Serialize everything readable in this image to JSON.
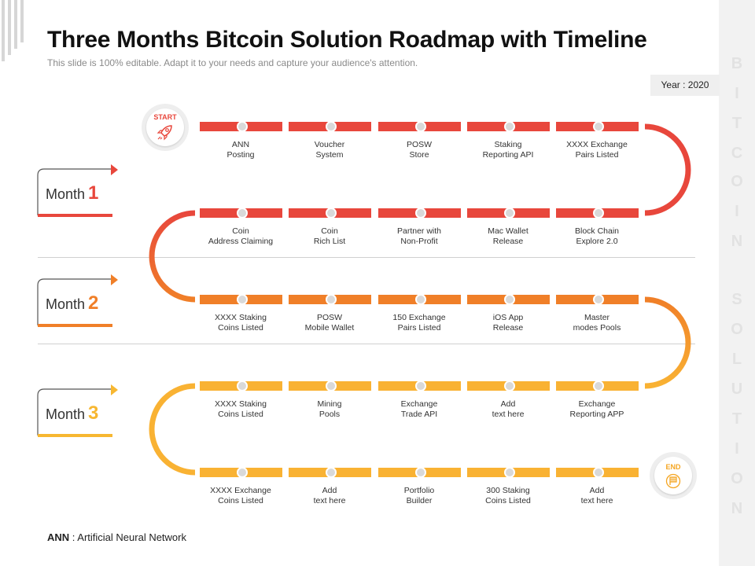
{
  "title": "Three Months Bitcoin Solution Roadmap with Timeline",
  "subtitle": "This slide is 100% editable. Adapt it to your needs and capture your audience's attention.",
  "year_label": "Year : 2020",
  "sidebar_letters": [
    "B",
    "I",
    "T",
    "C",
    "O",
    "I",
    "N",
    "S",
    "O",
    "L",
    "U",
    "T",
    "I",
    "O",
    "N"
  ],
  "start_label": "START",
  "end_label": "END",
  "months": [
    {
      "label": "Month",
      "number": "1",
      "color": "#e8473c"
    },
    {
      "label": "Month",
      "number": "2",
      "color": "#f07f28"
    },
    {
      "label": "Month",
      "number": "3",
      "color": "#f7b731"
    }
  ],
  "rows": [
    {
      "color": "#e8473c",
      "items": [
        [
          "ANN",
          "Posting"
        ],
        [
          "Voucher",
          "System"
        ],
        [
          "POSW",
          "Store"
        ],
        [
          "Staking",
          "Reporting API"
        ],
        [
          "XXXX Exchange",
          "Pairs Listed"
        ]
      ]
    },
    {
      "color": "#e8473c",
      "items": [
        [
          "Coin",
          "Address Claiming"
        ],
        [
          "Coin",
          "Rich List"
        ],
        [
          "Partner with",
          "Non-Profit"
        ],
        [
          "Mac Wallet",
          "Release"
        ],
        [
          "Block Chain",
          "Explore 2.0"
        ]
      ]
    },
    {
      "color": "#f07f28",
      "items": [
        [
          "XXXX Staking",
          "Coins Listed"
        ],
        [
          "POSW",
          "Mobile Wallet"
        ],
        [
          "150 Exchange",
          "Pairs Listed"
        ],
        [
          "iOS App",
          "Release"
        ],
        [
          "Master",
          "modes Pools"
        ]
      ]
    },
    {
      "color": "#f9b233",
      "items": [
        [
          "XXXX Staking",
          "Coins Listed"
        ],
        [
          "Mining",
          "Pools"
        ],
        [
          "Exchange",
          "Trade API"
        ],
        [
          "Add",
          "text here"
        ],
        [
          "Exchange",
          "Reporting APP"
        ]
      ]
    },
    {
      "color": "#f9b233",
      "items": [
        [
          "XXXX Exchange",
          "Coins Listed"
        ],
        [
          "Add",
          "text here"
        ],
        [
          "Portfolio",
          "Builder"
        ],
        [
          "300 Staking",
          "Coins Listed"
        ],
        [
          "Add",
          "text here"
        ]
      ]
    }
  ],
  "footnote": {
    "abbr": "ANN",
    "text": " : Artificial Neural Network"
  },
  "colors": {
    "red": "#e8473c",
    "orange": "#f07f28",
    "yellow": "#f9b233",
    "start_text": "#e8473c",
    "end_text": "#f5a623"
  }
}
